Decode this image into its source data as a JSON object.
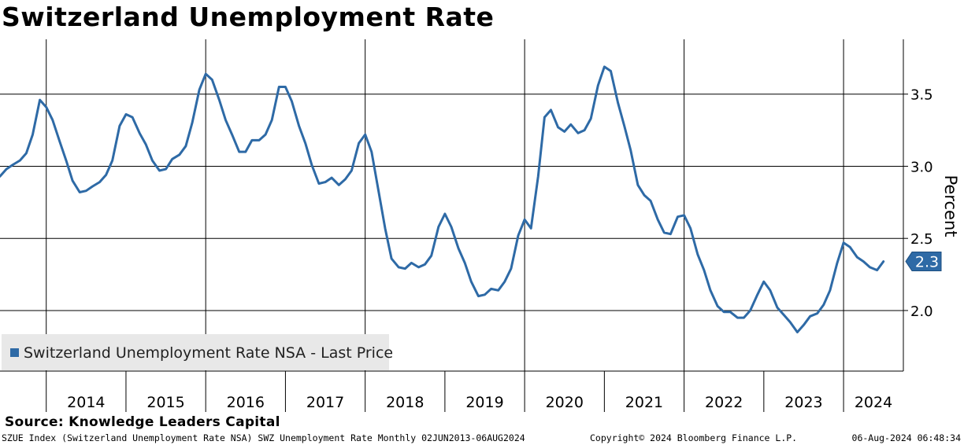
{
  "title": "Switzerland Unemployment Rate",
  "source": "Source: Knowledge Leaders Capital",
  "footer": {
    "index_info": "SZUE Index (Switzerland Unemployment Rate NSA) SWZ Unemployment Rate  Monthly 02JUN2013-06AUG2024",
    "copyright": "Copyright© 2024 Bloomberg Finance L.P.",
    "timestamp": "06-Aug-2024 06:48:34"
  },
  "colors": {
    "series": "#2e6aa6",
    "grid": "#000000",
    "legend_bg": "#e8e8e8"
  },
  "chart_data": {
    "type": "line",
    "title": "Switzerland Unemployment Rate",
    "ylabel": "Percent",
    "ylim": [
      1.58,
      3.88
    ],
    "yticks": [
      2.0,
      2.5,
      3.0,
      3.5
    ],
    "ytick_labels": [
      "2.0",
      "2.5",
      "3.0",
      "3.5"
    ],
    "xlim": [
      2013.42,
      2024.75
    ],
    "year_labels": [
      "2014",
      "2015",
      "2016",
      "2017",
      "2018",
      "2019",
      "2020",
      "2021",
      "2022",
      "2023",
      "2024"
    ],
    "grid": true,
    "legend": {
      "label": "Switzerland Unemployment Rate NSA - Last Price",
      "position": "bottom-left"
    },
    "last_value": {
      "label": "2.3",
      "value": 2.34
    },
    "series": [
      {
        "name": "Switzerland Unemployment Rate NSA",
        "x": [
          2013.42,
          2013.5,
          2013.58,
          2013.67,
          2013.75,
          2013.83,
          2013.92,
          2014.0,
          2014.08,
          2014.17,
          2014.25,
          2014.33,
          2014.42,
          2014.5,
          2014.58,
          2014.67,
          2014.75,
          2014.83,
          2014.92,
          2015.0,
          2015.08,
          2015.17,
          2015.25,
          2015.33,
          2015.42,
          2015.5,
          2015.58,
          2015.67,
          2015.75,
          2015.83,
          2015.92,
          2016.0,
          2016.08,
          2016.17,
          2016.25,
          2016.33,
          2016.42,
          2016.5,
          2016.58,
          2016.67,
          2016.75,
          2016.83,
          2016.92,
          2017.0,
          2017.08,
          2017.17,
          2017.25,
          2017.33,
          2017.42,
          2017.5,
          2017.58,
          2017.67,
          2017.75,
          2017.83,
          2017.92,
          2018.0,
          2018.08,
          2018.17,
          2018.25,
          2018.33,
          2018.42,
          2018.5,
          2018.58,
          2018.67,
          2018.75,
          2018.83,
          2018.92,
          2019.0,
          2019.08,
          2019.17,
          2019.25,
          2019.33,
          2019.42,
          2019.5,
          2019.58,
          2019.67,
          2019.75,
          2019.83,
          2019.92,
          2020.0,
          2020.08,
          2020.17,
          2020.25,
          2020.33,
          2020.42,
          2020.5,
          2020.58,
          2020.67,
          2020.75,
          2020.83,
          2020.92,
          2021.0,
          2021.08,
          2021.17,
          2021.25,
          2021.33,
          2021.42,
          2021.5,
          2021.58,
          2021.67,
          2021.75,
          2021.83,
          2021.92,
          2022.0,
          2022.08,
          2022.17,
          2022.25,
          2022.33,
          2022.42,
          2022.5,
          2022.58,
          2022.67,
          2022.75,
          2022.83,
          2022.92,
          2023.0,
          2023.08,
          2023.17,
          2023.25,
          2023.33,
          2023.42,
          2023.5,
          2023.58,
          2023.67,
          2023.75,
          2023.83,
          2023.92,
          2024.0,
          2024.08,
          2024.17,
          2024.25,
          2024.33,
          2024.42,
          2024.5
        ],
        "values": [
          2.93,
          2.98,
          3.01,
          3.04,
          3.09,
          3.22,
          3.46,
          3.41,
          3.32,
          3.17,
          3.04,
          2.9,
          2.82,
          2.83,
          2.86,
          2.89,
          2.94,
          3.04,
          3.28,
          3.36,
          3.34,
          3.23,
          3.15,
          3.04,
          2.97,
          2.98,
          3.05,
          3.08,
          3.14,
          3.3,
          3.53,
          3.64,
          3.6,
          3.46,
          3.32,
          3.22,
          3.1,
          3.1,
          3.18,
          3.18,
          3.22,
          3.32,
          3.55,
          3.55,
          3.45,
          3.28,
          3.16,
          3.01,
          2.88,
          2.89,
          2.92,
          2.87,
          2.91,
          2.97,
          3.16,
          3.22,
          3.1,
          2.82,
          2.57,
          2.36,
          2.3,
          2.29,
          2.33,
          2.3,
          2.32,
          2.38,
          2.58,
          2.67,
          2.58,
          2.43,
          2.33,
          2.2,
          2.1,
          2.11,
          2.15,
          2.14,
          2.2,
          2.29,
          2.52,
          2.63,
          2.57,
          2.93,
          3.34,
          3.39,
          3.27,
          3.24,
          3.29,
          3.23,
          3.25,
          3.33,
          3.56,
          3.69,
          3.66,
          3.44,
          3.28,
          3.11,
          2.87,
          2.8,
          2.76,
          2.63,
          2.54,
          2.53,
          2.65,
          2.66,
          2.57,
          2.39,
          2.28,
          2.14,
          2.03,
          1.99,
          1.99,
          1.95,
          1.95,
          2.0,
          2.11,
          2.2,
          2.14,
          2.02,
          1.97,
          1.92,
          1.85,
          1.9,
          1.96,
          1.98,
          2.04,
          2.14,
          2.33,
          2.47,
          2.44,
          2.37,
          2.34,
          2.3,
          2.28,
          2.34
        ]
      }
    ]
  }
}
